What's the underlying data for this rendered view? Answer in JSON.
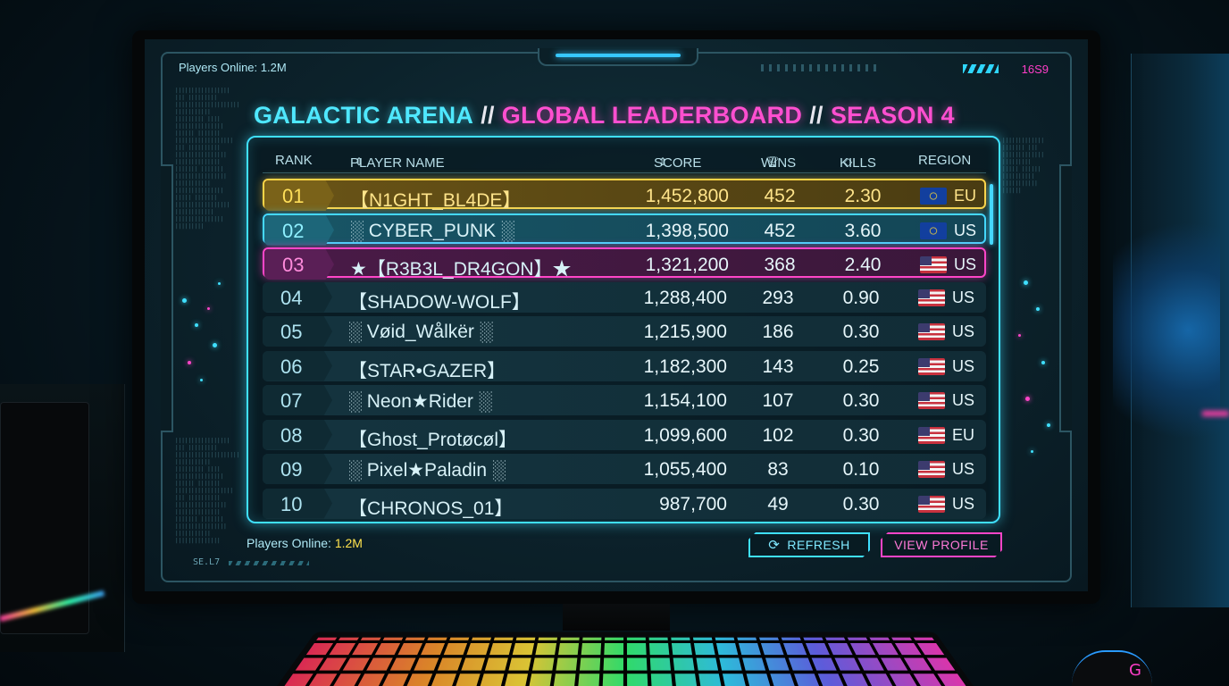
{
  "hud": {
    "players_online_top": "Players Online: 1.2M",
    "top_right_code": "16S9",
    "bottom_left_code": "SE.L7"
  },
  "title": {
    "part1": "GALACTIC ARENA",
    "sep1": "//",
    "part2": "GLOBAL LEADERBOARD",
    "sep2": "//",
    "part3": "SEASON 4"
  },
  "columns": {
    "rank": "RANK",
    "player_name": "PLAYER NAME",
    "score": "SCORE",
    "wins": "WINS",
    "kills": "KILLS",
    "region": "REGION"
  },
  "icons": {
    "sort": "sort-updown-icon",
    "trophy": "trophy-icon",
    "refresh": "refresh-icon"
  },
  "colors": {
    "gold": "#ffd447",
    "cyan": "#45d8ff",
    "magenta": "#ff45c8"
  },
  "rows": [
    {
      "rank": "01",
      "name": "【N1GHT_BL4DE】",
      "score": "1,452,800",
      "wins": "452",
      "kills": "2.30",
      "flag": "eu",
      "region": "EU",
      "style": "gold"
    },
    {
      "rank": "02",
      "name": "░ CYBER_PUNK ░",
      "score": "1,398,500",
      "wins": "452",
      "kills": "3.60",
      "flag": "eu",
      "region": "US",
      "style": "cyan"
    },
    {
      "rank": "03",
      "name": "★【R3B3L_DR4GON】★",
      "score": "1,321,200",
      "wins": "368",
      "kills": "2.40",
      "flag": "us",
      "region": "US",
      "style": "magenta"
    },
    {
      "rank": "04",
      "name": "【SHADOW-WOLF】",
      "score": "1,288,400",
      "wins": "293",
      "kills": "0.90",
      "flag": "us",
      "region": "US",
      "style": ""
    },
    {
      "rank": "05",
      "name": "░ Vøid_Wålkër ░",
      "score": "1,215,900",
      "wins": "186",
      "kills": "0.30",
      "flag": "us",
      "region": "US",
      "style": ""
    },
    {
      "rank": "06",
      "name": "【STAR•GAZER】",
      "score": "1,182,300",
      "wins": "143",
      "kills": "0.25",
      "flag": "us",
      "region": "US",
      "style": ""
    },
    {
      "rank": "07",
      "name": "░ Neon★Rider ░",
      "score": "1,154,100",
      "wins": "107",
      "kills": "0.30",
      "flag": "us",
      "region": "US",
      "style": ""
    },
    {
      "rank": "08",
      "name": "【Ghost_Protøcøl】",
      "score": "1,099,600",
      "wins": "102",
      "kills": "0.30",
      "flag": "us",
      "region": "EU",
      "style": ""
    },
    {
      "rank": "09",
      "name": "░ Pixel★Paladin ░",
      "score": "1,055,400",
      "wins": "83",
      "kills": "0.10",
      "flag": "us",
      "region": "US",
      "style": ""
    },
    {
      "rank": "10",
      "name": "【CHRONOS_01】",
      "score": "987,700",
      "wins": "49",
      "kills": "0.30",
      "flag": "us",
      "region": "US",
      "style": ""
    }
  ],
  "footer": {
    "players_online_label": "Players Online:",
    "players_online_value": "1.2M",
    "refresh_label": "REFRESH",
    "view_profile_label": "VIEW PROFILE"
  }
}
